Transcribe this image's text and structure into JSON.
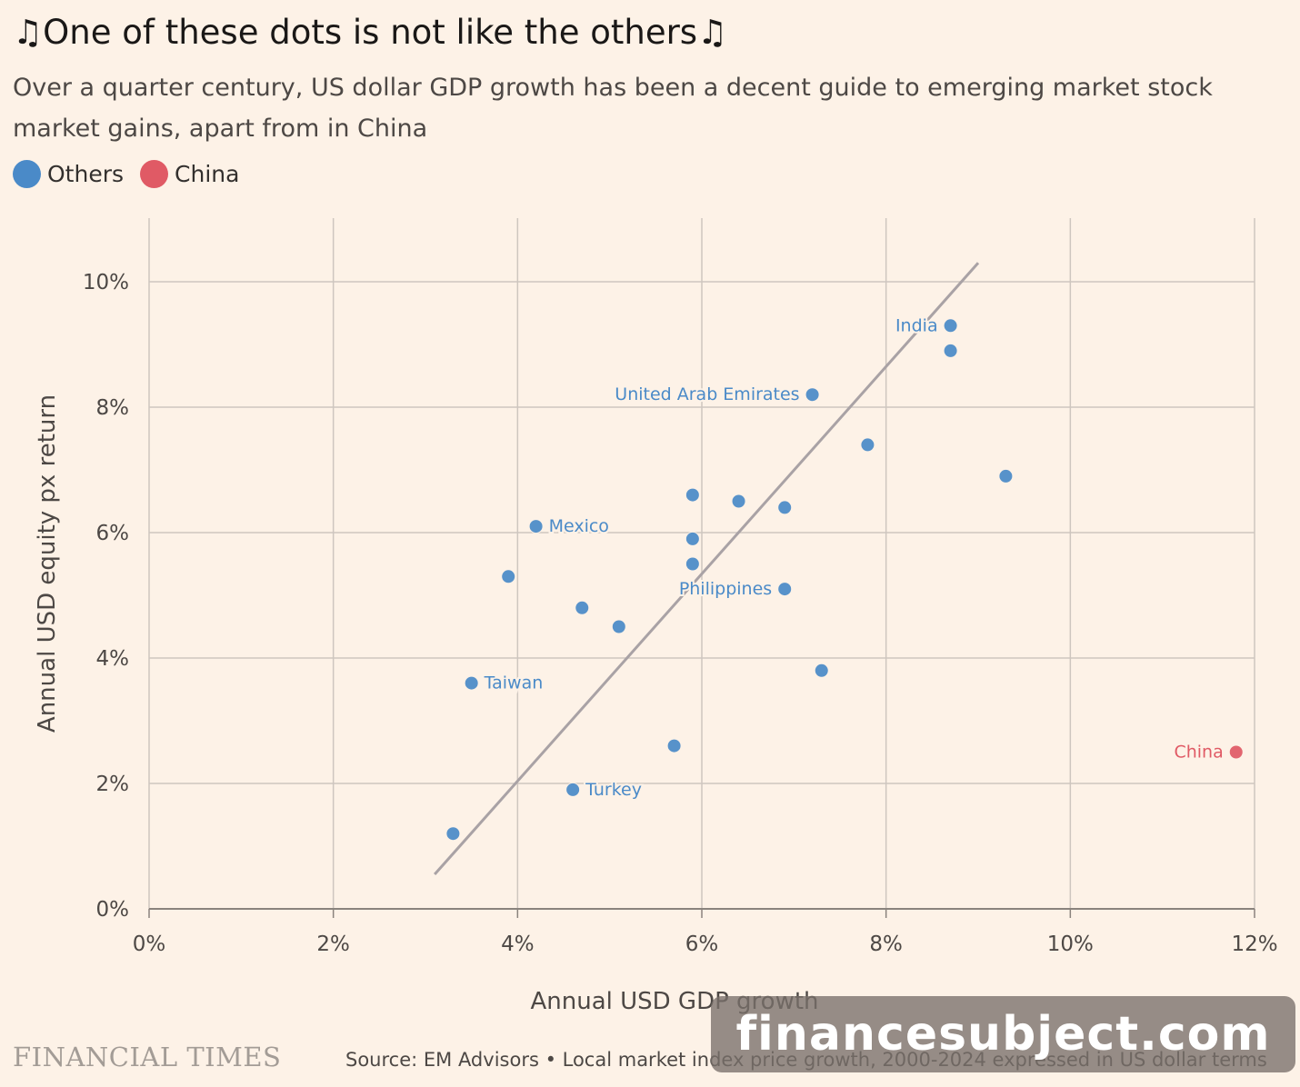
{
  "header": {
    "title": "♫One of these dots is not like the others♫",
    "subtitle": "Over a quarter century, US dollar GDP growth has been a decent guide to emerging market stock market gains, apart from in China"
  },
  "legend": {
    "items": [
      {
        "label": "Others",
        "color": "#4a8ac8"
      },
      {
        "label": "China",
        "color": "#e05a65"
      }
    ]
  },
  "footer": {
    "logo": "FINANCIAL TIMES",
    "source": "Source: EM Advisors • Local market index price growth, 2000-2024 expressed in US dollar terms"
  },
  "watermark": "financesubject.com",
  "chart_data": {
    "type": "scatter",
    "xlabel": "Annual USD GDP growth",
    "ylabel": "Annual USD equity px return",
    "xlim": [
      0,
      12
    ],
    "ylim": [
      0,
      11
    ],
    "x_ticks": [
      0,
      2,
      4,
      6,
      8,
      10,
      12
    ],
    "x_tick_labels": [
      "0%",
      "2%",
      "4%",
      "6%",
      "8%",
      "10%",
      "12%"
    ],
    "y_ticks": [
      0,
      2,
      4,
      6,
      8,
      10
    ],
    "y_tick_labels": [
      "0%",
      "2%",
      "4%",
      "6%",
      "8%",
      "10%"
    ],
    "grid": true,
    "legend_position": "top-left",
    "trendline": {
      "x": [
        3.1,
        9.0
      ],
      "y": [
        0.55,
        10.3
      ],
      "color": "#a9a2a5"
    },
    "series": [
      {
        "name": "Others",
        "color": "#4a8ac8",
        "points": [
          {
            "x": 8.7,
            "y": 9.3,
            "label": "India"
          },
          {
            "x": 8.7,
            "y": 8.9
          },
          {
            "x": 7.2,
            "y": 8.2,
            "label": "United Arab Emirates"
          },
          {
            "x": 7.8,
            "y": 7.4
          },
          {
            "x": 9.3,
            "y": 6.9
          },
          {
            "x": 5.9,
            "y": 6.6
          },
          {
            "x": 6.4,
            "y": 6.5
          },
          {
            "x": 6.9,
            "y": 6.4
          },
          {
            "x": 4.2,
            "y": 6.1,
            "label": "Mexico"
          },
          {
            "x": 5.9,
            "y": 5.9
          },
          {
            "x": 5.9,
            "y": 5.5
          },
          {
            "x": 3.9,
            "y": 5.3
          },
          {
            "x": 6.9,
            "y": 5.1,
            "label": "Philippines"
          },
          {
            "x": 4.7,
            "y": 4.8
          },
          {
            "x": 5.1,
            "y": 4.5
          },
          {
            "x": 7.3,
            "y": 3.8
          },
          {
            "x": 3.5,
            "y": 3.6,
            "label": "Taiwan"
          },
          {
            "x": 5.7,
            "y": 2.6
          },
          {
            "x": 4.6,
            "y": 1.9,
            "label": "Turkey"
          },
          {
            "x": 3.3,
            "y": 1.2
          }
        ]
      },
      {
        "name": "China",
        "color": "#e05a65",
        "points": [
          {
            "x": 11.8,
            "y": 2.5,
            "label": "China"
          }
        ]
      }
    ]
  }
}
